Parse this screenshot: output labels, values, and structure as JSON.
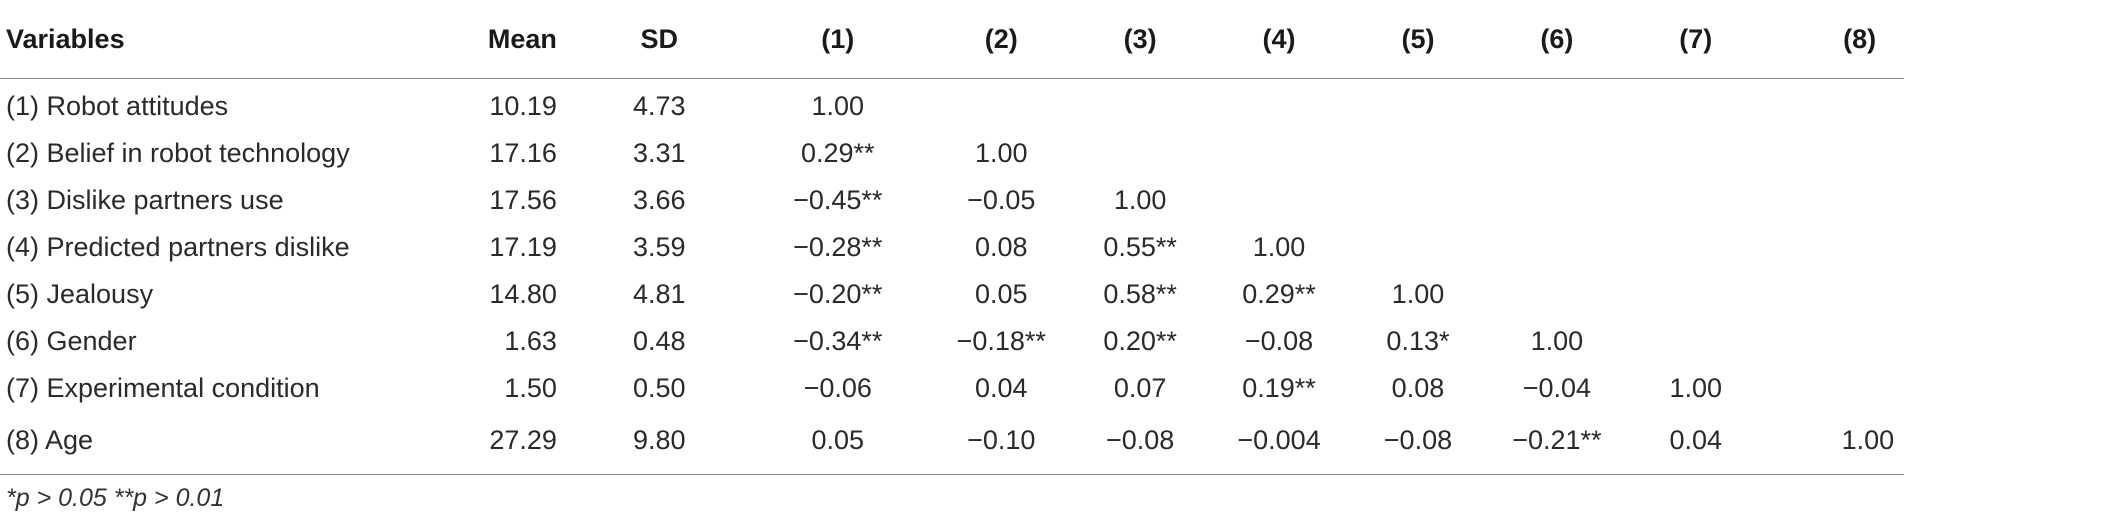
{
  "table": {
    "headers": [
      "Variables",
      "Mean",
      "SD",
      "(1)",
      "(2)",
      "(3)",
      "(4)",
      "(5)",
      "(6)",
      "(7)",
      "(8)"
    ],
    "rows": [
      {
        "variable": "(1) Robot attitudes",
        "mean": "10.19",
        "sd": "4.73",
        "cells": [
          "1.00",
          "",
          "",
          "",
          "",
          "",
          "",
          ""
        ]
      },
      {
        "variable": "(2) Belief in robot technology",
        "mean": "17.16",
        "sd": "3.31",
        "cells": [
          "0.29**",
          "1.00",
          "",
          "",
          "",
          "",
          "",
          ""
        ]
      },
      {
        "variable": "(3) Dislike partners use",
        "mean": "17.56",
        "sd": "3.66",
        "cells": [
          "−0.45**",
          "−0.05",
          "1.00",
          "",
          "",
          "",
          "",
          ""
        ]
      },
      {
        "variable": "(4) Predicted partners dislike",
        "mean": "17.19",
        "sd": "3.59",
        "cells": [
          "−0.28**",
          "0.08",
          "0.55**",
          "1.00",
          "",
          "",
          "",
          ""
        ]
      },
      {
        "variable": "(5) Jealousy",
        "mean": "14.80",
        "sd": "4.81",
        "cells": [
          "−0.20**",
          "0.05",
          "0.58**",
          "0.29**",
          "1.00",
          "",
          "",
          ""
        ]
      },
      {
        "variable": "(6) Gender",
        "mean": "1.63",
        "sd": "0.48",
        "cells": [
          "−0.34**",
          "−0.18**",
          "0.20**",
          "−0.08",
          "0.13*",
          "1.00",
          "",
          ""
        ]
      },
      {
        "variable": "(7) Experimental condition",
        "mean": "1.50",
        "sd": "0.50",
        "cells": [
          "−0.06",
          "0.04",
          "0.07",
          "0.19**",
          "0.08",
          "−0.04",
          "1.00",
          ""
        ]
      },
      {
        "variable": "(8) Age",
        "mean": "27.29",
        "sd": "9.80",
        "cells": [
          "0.05",
          "−0.10",
          "−0.08",
          "−0.004",
          "−0.08",
          "−0.21**",
          "0.04",
          "1.00"
        ]
      }
    ],
    "footnote": "*p > 0.05 **p > 0.01"
  }
}
